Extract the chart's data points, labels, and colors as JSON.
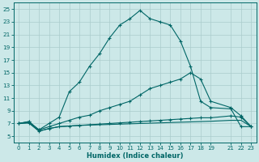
{
  "xlabel": "Humidex (Indice chaleur)",
  "background_color": "#cce8e8",
  "grid_color": "#aacccc",
  "line_color": "#006666",
  "xlim": [
    -0.5,
    23.5
  ],
  "ylim": [
    4,
    26
  ],
  "xticks": [
    0,
    1,
    2,
    3,
    4,
    5,
    6,
    7,
    8,
    9,
    10,
    11,
    12,
    13,
    14,
    15,
    16,
    17,
    18,
    19,
    21,
    22,
    23
  ],
  "yticks": [
    5,
    7,
    9,
    11,
    13,
    15,
    17,
    19,
    21,
    23,
    25
  ],
  "curve_main_x": [
    0,
    1,
    2,
    3,
    4,
    5,
    6,
    7,
    8,
    9,
    10,
    11,
    12,
    13,
    14,
    15,
    16,
    17,
    18,
    19,
    21,
    22,
    23
  ],
  "curve_main_y": [
    7.0,
    7.3,
    6.0,
    7.0,
    8.0,
    12.0,
    13.5,
    16.0,
    18.0,
    20.5,
    22.5,
    23.5,
    24.8,
    23.5,
    23.0,
    22.5,
    20.0,
    16.0,
    10.5,
    9.5,
    9.3,
    6.5,
    6.5
  ],
  "curve_mid_x": [
    0,
    1,
    2,
    3,
    4,
    5,
    6,
    7,
    8,
    9,
    10,
    11,
    12,
    13,
    14,
    15,
    16,
    17,
    18,
    19,
    21,
    22,
    23
  ],
  "curve_mid_y": [
    7.0,
    7.3,
    6.0,
    6.5,
    7.0,
    7.5,
    8.0,
    8.3,
    9.0,
    9.5,
    10.0,
    10.5,
    11.5,
    12.5,
    13.0,
    13.5,
    14.0,
    15.0,
    14.0,
    10.5,
    9.5,
    8.2,
    6.5
  ],
  "curve_low1_x": [
    0,
    1,
    2,
    3,
    4,
    5,
    6,
    7,
    8,
    9,
    10,
    11,
    12,
    13,
    14,
    15,
    16,
    17,
    18,
    19,
    21,
    22,
    23
  ],
  "curve_low1_y": [
    7.0,
    7.1,
    5.8,
    6.2,
    6.5,
    6.6,
    6.7,
    6.8,
    6.9,
    7.0,
    7.1,
    7.2,
    7.3,
    7.4,
    7.5,
    7.6,
    7.7,
    7.8,
    7.9,
    7.9,
    8.2,
    8.0,
    6.5
  ],
  "curve_low2_x": [
    0,
    1,
    2,
    3,
    4,
    5,
    6,
    7,
    8,
    9,
    10,
    11,
    12,
    13,
    14,
    15,
    16,
    17,
    18,
    19,
    21,
    22,
    23
  ],
  "curve_low2_y": [
    7.0,
    7.1,
    5.8,
    6.2,
    6.5,
    6.6,
    6.7,
    6.75,
    6.8,
    6.85,
    6.9,
    6.95,
    7.0,
    7.05,
    7.1,
    7.15,
    7.2,
    7.25,
    7.3,
    7.35,
    7.5,
    7.5,
    6.5
  ]
}
